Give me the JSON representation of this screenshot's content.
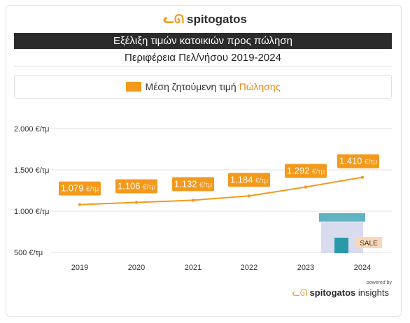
{
  "brand": {
    "logo_icon": "cat-icon",
    "name": "spitogatos"
  },
  "header": {
    "title": "Εξέλιξη τιμών κατοικιών προς πώληση",
    "subtitle": "Περιφέρεια Πελ/νήσου 2019-2024"
  },
  "legend": {
    "label": "Μέση ζητούμενη τιμή",
    "accent": "Πώλησης",
    "color": "#f39a1c"
  },
  "illustration": {
    "sign_label": "SALE"
  },
  "footer": {
    "powered_by": "powered by",
    "brand_bold": "spitogatos",
    "brand_suffix": "insights"
  },
  "chart_data": {
    "type": "line",
    "categories": [
      "2019",
      "2020",
      "2021",
      "2022",
      "2023",
      "2024"
    ],
    "values": [
      1079,
      1106,
      1132,
      1184,
      1292,
      1410
    ],
    "data_labels": [
      {
        "num": "1.079",
        "unit": "€/τμ"
      },
      {
        "num": "1.106",
        "unit": "€/τμ"
      },
      {
        "num": "1.132",
        "unit": "€/τμ"
      },
      {
        "num": "1.184",
        "unit": "€/τμ"
      },
      {
        "num": "1.292",
        "unit": "€/τμ"
      },
      {
        "num": "1.410",
        "unit": "€/τμ"
      }
    ],
    "y_ticks": [
      500,
      1000,
      1500,
      2000
    ],
    "y_tick_labels": [
      "500 €/τμ",
      "1.000 €/τμ",
      "1.500 €/τμ",
      "2.000 €/τμ"
    ],
    "ylim": [
      500,
      2000
    ],
    "grid": true,
    "line_color": "#f39a1c",
    "label_color": "#f39a1c"
  }
}
